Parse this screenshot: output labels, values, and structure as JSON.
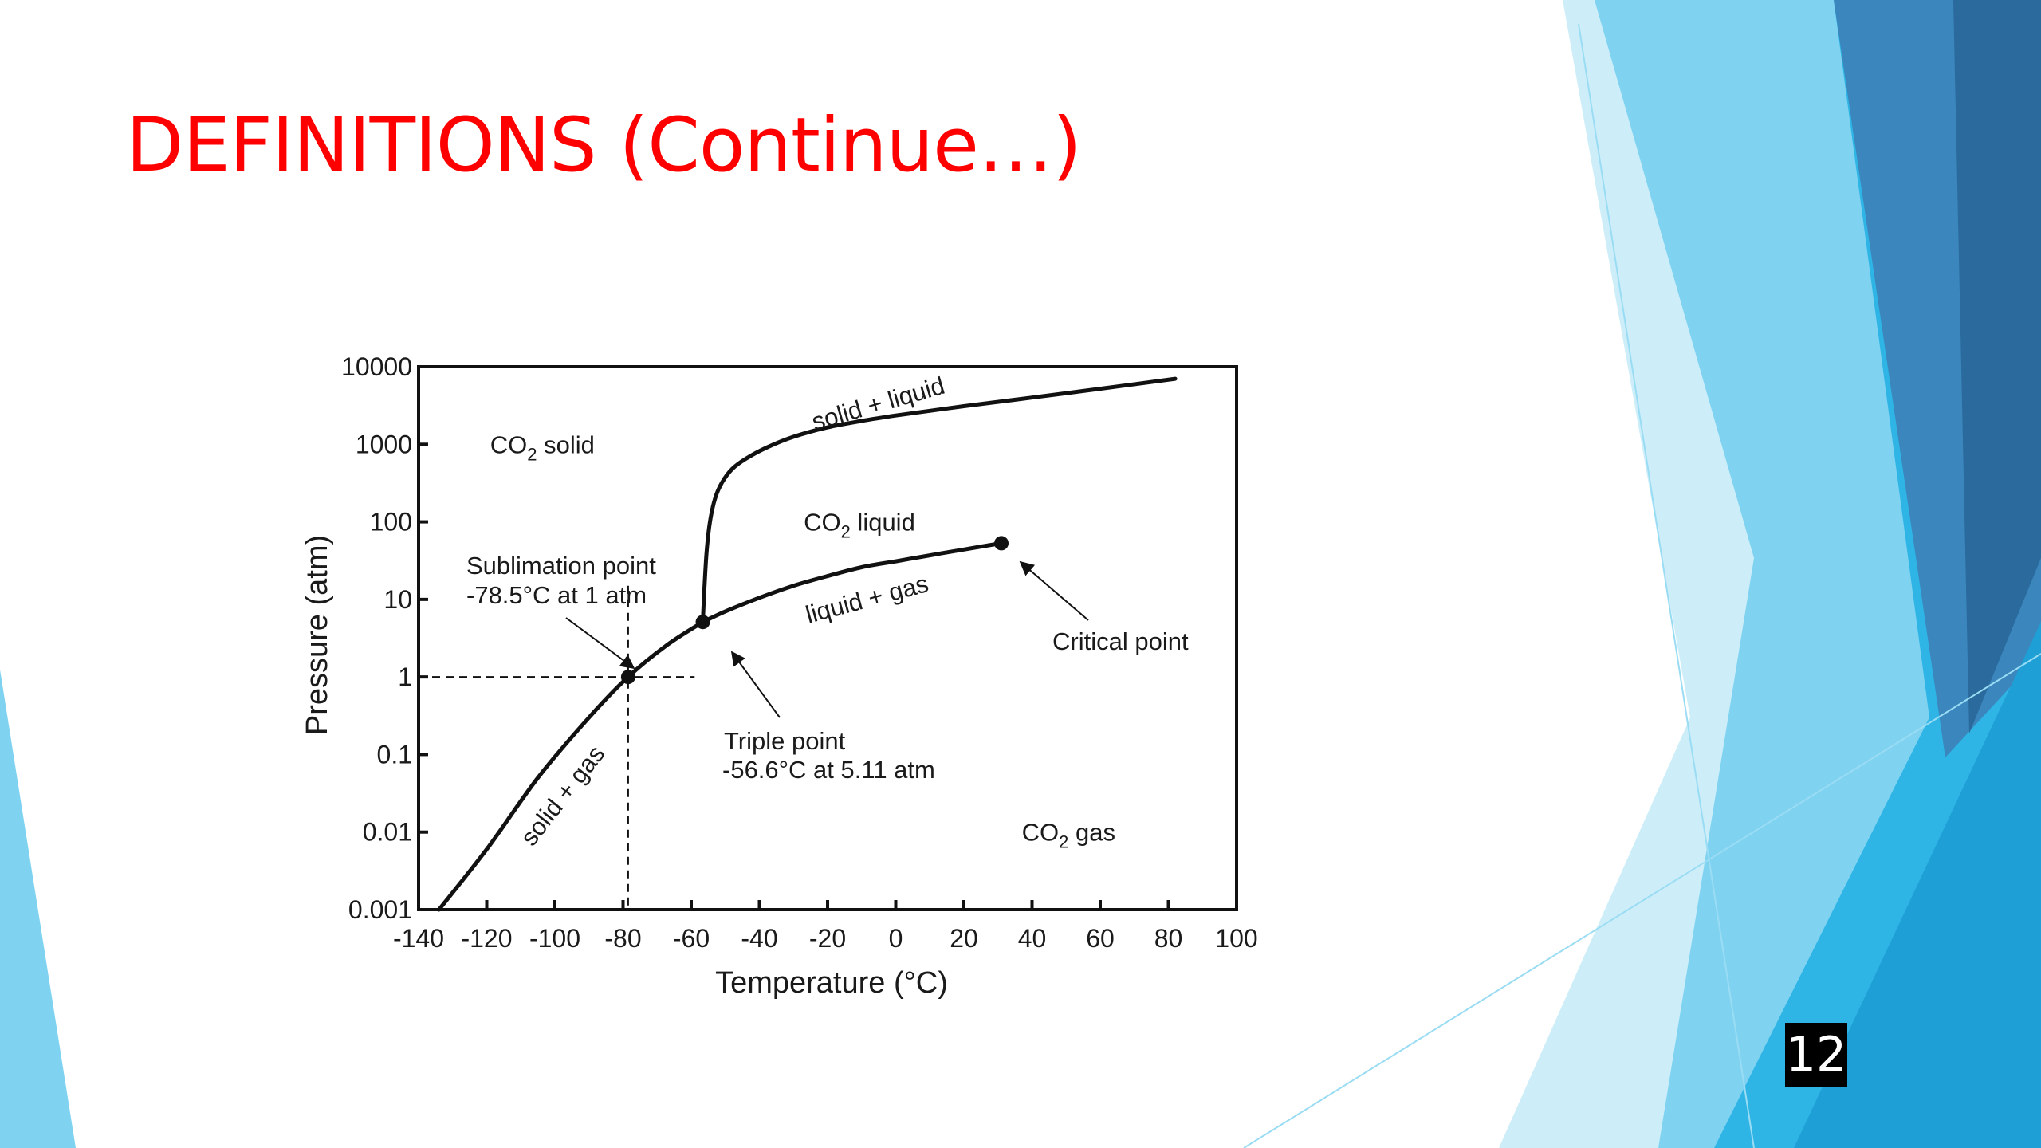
{
  "slide": {
    "title": "DEFINITIONS (Continue…)",
    "number": "12"
  },
  "theme": {
    "title_color": "#ff0000",
    "accent_light": "#7fd3f1",
    "accent_mid": "#2fb4e6",
    "accent_dark": "#2a6a9c"
  },
  "chart_data": {
    "type": "line",
    "title": "",
    "xlabel": "Temperature (°C)",
    "ylabel": "Pressure (atm)",
    "xlim": [
      -140,
      100
    ],
    "ylim": [
      0.001,
      10000
    ],
    "yscale": "log",
    "grid": false,
    "x_ticks": [
      -140,
      -120,
      -100,
      -80,
      -60,
      -40,
      -20,
      0,
      20,
      40,
      60,
      80,
      100
    ],
    "x_tick_labels": [
      "-140",
      "-120",
      "-100",
      "-80",
      "-60",
      "-40",
      "-20",
      "0",
      "20",
      "40",
      "60",
      "80",
      "100"
    ],
    "y_ticks": [
      0.001,
      0.01,
      0.1,
      1,
      10,
      100,
      1000,
      10000
    ],
    "y_tick_labels": [
      "0.001",
      "0.01",
      "0.1",
      "1",
      "10",
      "100",
      "1000",
      "10000"
    ],
    "series": [
      {
        "key": "sublimation",
        "x": [
          -134,
          -120,
          -105,
          -90,
          -78.5,
          -67,
          -56.6
        ],
        "y": [
          0.001,
          0.006,
          0.05,
          0.3,
          1,
          2.6,
          5.11
        ]
      },
      {
        "key": "melting",
        "x": [
          -56.6,
          -56.2,
          -55.5,
          -54.5,
          -53,
          -51,
          -48,
          -44,
          -38,
          -30,
          -20,
          -10,
          0,
          10,
          20,
          40,
          60,
          82
        ],
        "y": [
          5.11,
          12,
          40,
          100,
          200,
          320,
          480,
          650,
          900,
          1250,
          1650,
          2000,
          2350,
          2700,
          3100,
          4000,
          5200,
          7000
        ]
      },
      {
        "key": "vaporization",
        "x": [
          -56.6,
          -50,
          -40,
          -30,
          -20,
          -10,
          0,
          10,
          20,
          31
        ],
        "y": [
          5.11,
          7,
          10.5,
          15,
          20,
          26,
          31,
          37,
          44,
          53
        ]
      }
    ],
    "points": [
      {
        "key": "sublimation_point",
        "x": -78.5,
        "y": 1
      },
      {
        "key": "triple_point",
        "x": -56.6,
        "y": 5.11
      },
      {
        "key": "critical_point",
        "x": 31,
        "y": 53
      }
    ],
    "reference_lines": {
      "x": -78.5,
      "y": 1
    },
    "region_labels": {
      "solid": {
        "main": "CO",
        "sub": "2",
        "rest": " solid",
        "x": -119,
        "y": 1000
      },
      "liquid": {
        "main": "CO",
        "sub": "2",
        "rest": " liquid",
        "x": -27,
        "y": 100
      },
      "gas": {
        "main": "CO",
        "sub": "2",
        "rest": " gas",
        "x": 37,
        "y": 0.01
      }
    },
    "annotations": {
      "solid_liquid": "solid + liquid",
      "liquid_gas": "liquid + gas",
      "solid_gas": "solid + gas",
      "sublimation_line1": "Sublimation point",
      "sublimation_line2": "-78.5°C at 1 atm",
      "triple_line1": "Triple point",
      "triple_line2": "-56.6°C at 5.11 atm",
      "critical": "Critical point"
    }
  }
}
